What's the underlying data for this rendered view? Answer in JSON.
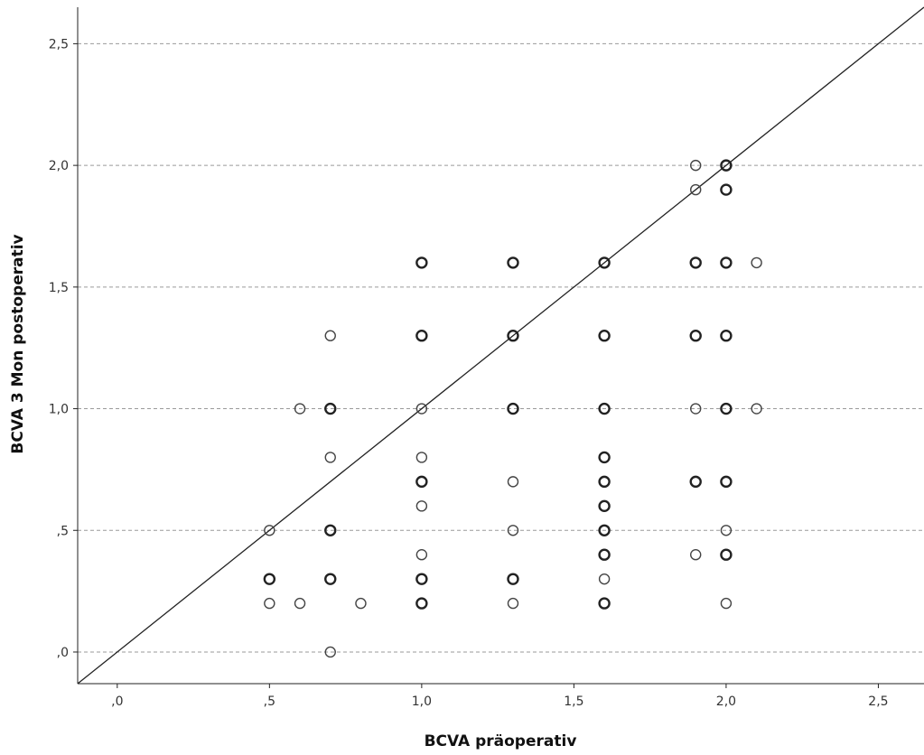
{
  "chart_data": {
    "type": "scatter",
    "title": "",
    "xlabel": "BCVA präoperativ",
    "ylabel": "BCVA 3 Mon postoperativ",
    "xlim": [
      -0.13,
      2.65
    ],
    "ylim": [
      -0.13,
      2.65
    ],
    "x_ticks": [
      0.0,
      0.5,
      1.0,
      1.5,
      2.0,
      2.5
    ],
    "x_tick_labels": [
      ",0",
      ",5",
      "1,0",
      "1,5",
      "2,0",
      "2,5"
    ],
    "y_ticks": [
      0.0,
      0.5,
      1.0,
      1.5,
      2.0,
      2.5
    ],
    "y_tick_labels": [
      ",0",
      ",5",
      "1,0",
      "1,5",
      "2,0",
      "2,5"
    ],
    "grid": "horizontal dashed at y ticks",
    "reference_line": {
      "type": "identity",
      "from": [
        -0.13,
        -0.13
      ],
      "to": [
        2.65,
        2.65
      ]
    },
    "point_color": "#444444",
    "points": [
      {
        "x": 0.5,
        "y": 0.5,
        "n": 1
      },
      {
        "x": 0.5,
        "y": 0.3,
        "n": 2
      },
      {
        "x": 0.5,
        "y": 0.2,
        "n": 1
      },
      {
        "x": 0.6,
        "y": 1.0,
        "n": 1
      },
      {
        "x": 0.6,
        "y": 0.2,
        "n": 1
      },
      {
        "x": 0.7,
        "y": 1.3,
        "n": 1
      },
      {
        "x": 0.7,
        "y": 1.0,
        "n": 2
      },
      {
        "x": 0.7,
        "y": 0.8,
        "n": 1
      },
      {
        "x": 0.7,
        "y": 0.5,
        "n": 2
      },
      {
        "x": 0.7,
        "y": 0.3,
        "n": 2
      },
      {
        "x": 0.7,
        "y": 0.0,
        "n": 1
      },
      {
        "x": 0.8,
        "y": 0.2,
        "n": 1
      },
      {
        "x": 1.0,
        "y": 1.6,
        "n": 2
      },
      {
        "x": 1.0,
        "y": 1.3,
        "n": 2
      },
      {
        "x": 1.0,
        "y": 1.0,
        "n": 1
      },
      {
        "x": 1.0,
        "y": 0.8,
        "n": 1
      },
      {
        "x": 1.0,
        "y": 0.7,
        "n": 2
      },
      {
        "x": 1.0,
        "y": 0.6,
        "n": 1
      },
      {
        "x": 1.0,
        "y": 0.4,
        "n": 1
      },
      {
        "x": 1.0,
        "y": 0.3,
        "n": 2
      },
      {
        "x": 1.0,
        "y": 0.2,
        "n": 2
      },
      {
        "x": 1.3,
        "y": 1.6,
        "n": 2
      },
      {
        "x": 1.3,
        "y": 1.3,
        "n": 2
      },
      {
        "x": 1.3,
        "y": 1.0,
        "n": 2
      },
      {
        "x": 1.3,
        "y": 0.7,
        "n": 1
      },
      {
        "x": 1.3,
        "y": 0.5,
        "n": 1
      },
      {
        "x": 1.3,
        "y": 0.3,
        "n": 2
      },
      {
        "x": 1.3,
        "y": 0.2,
        "n": 1
      },
      {
        "x": 1.6,
        "y": 1.6,
        "n": 2
      },
      {
        "x": 1.6,
        "y": 1.3,
        "n": 2
      },
      {
        "x": 1.6,
        "y": 1.0,
        "n": 2
      },
      {
        "x": 1.6,
        "y": 0.8,
        "n": 2
      },
      {
        "x": 1.6,
        "y": 0.7,
        "n": 2
      },
      {
        "x": 1.6,
        "y": 0.6,
        "n": 2
      },
      {
        "x": 1.6,
        "y": 0.5,
        "n": 2
      },
      {
        "x": 1.6,
        "y": 0.4,
        "n": 2
      },
      {
        "x": 1.6,
        "y": 0.3,
        "n": 1
      },
      {
        "x": 1.6,
        "y": 0.2,
        "n": 2
      },
      {
        "x": 1.9,
        "y": 2.0,
        "n": 1
      },
      {
        "x": 1.9,
        "y": 1.9,
        "n": 1
      },
      {
        "x": 1.9,
        "y": 1.6,
        "n": 2
      },
      {
        "x": 1.9,
        "y": 1.3,
        "n": 2
      },
      {
        "x": 1.9,
        "y": 1.0,
        "n": 1
      },
      {
        "x": 1.9,
        "y": 0.7,
        "n": 2
      },
      {
        "x": 1.9,
        "y": 0.4,
        "n": 1
      },
      {
        "x": 2.0,
        "y": 2.0,
        "n": 2
      },
      {
        "x": 2.0,
        "y": 1.9,
        "n": 2
      },
      {
        "x": 2.0,
        "y": 1.6,
        "n": 2
      },
      {
        "x": 2.0,
        "y": 1.3,
        "n": 2
      },
      {
        "x": 2.0,
        "y": 1.0,
        "n": 2
      },
      {
        "x": 2.0,
        "y": 0.7,
        "n": 2
      },
      {
        "x": 2.0,
        "y": 0.5,
        "n": 1
      },
      {
        "x": 2.0,
        "y": 0.4,
        "n": 2
      },
      {
        "x": 2.0,
        "y": 0.2,
        "n": 1
      },
      {
        "x": 2.1,
        "y": 1.6,
        "n": 1
      },
      {
        "x": 2.1,
        "y": 1.0,
        "n": 1
      }
    ]
  }
}
